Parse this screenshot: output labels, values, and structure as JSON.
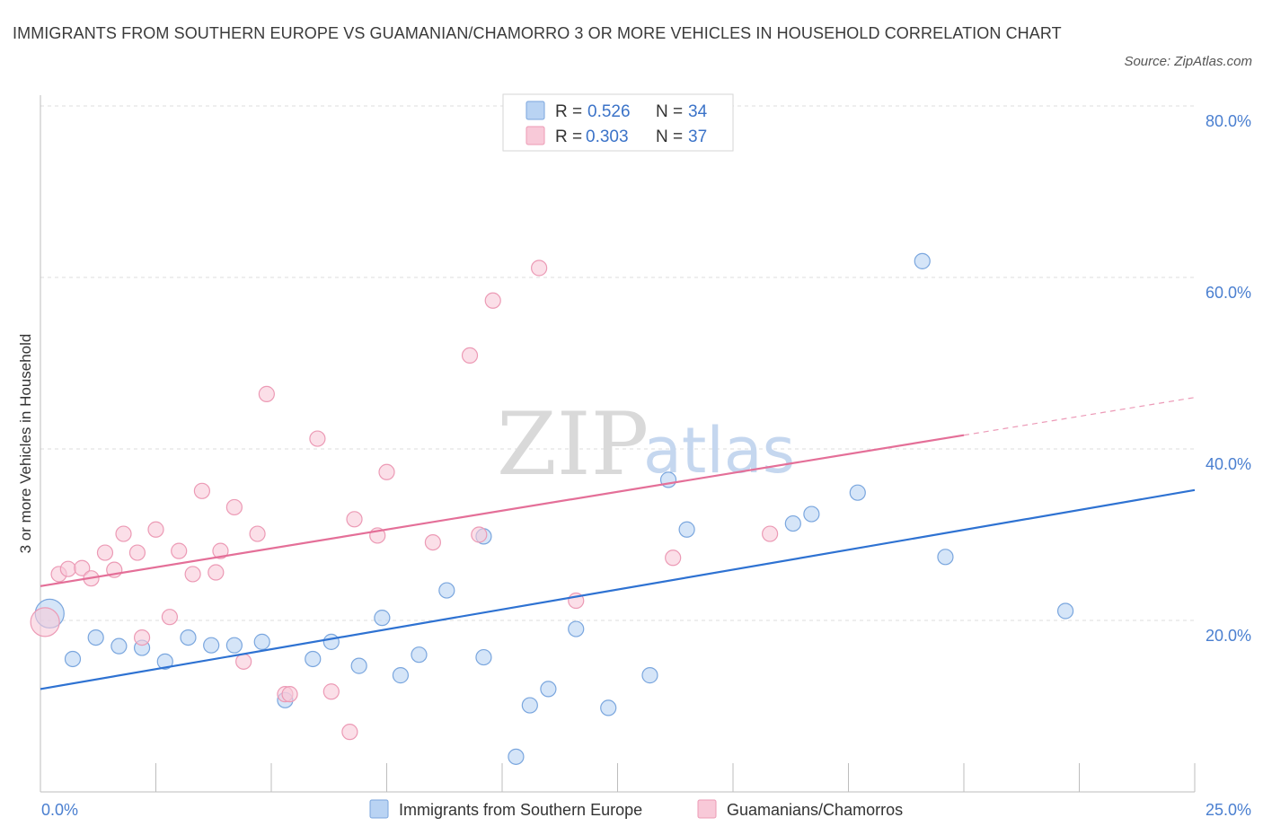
{
  "header": {
    "title": "IMMIGRANTS FROM SOUTHERN EUROPE VS GUAMANIAN/CHAMORRO 3 OR MORE VEHICLES IN HOUSEHOLD CORRELATION CHART",
    "source": "Source: ZipAtlas.com"
  },
  "watermark": {
    "zip": "ZIP",
    "atlas": "atlas"
  },
  "colors": {
    "blue_fill": "#b9d3f3",
    "blue_stroke": "#7aa6de",
    "blue_line": "#2e72d2",
    "pink_fill": "#f8c9d8",
    "pink_stroke": "#ec9ab5",
    "pink_line": "#e46f98",
    "grid": "#dddddd",
    "axis_tick_text": "#4a7fd0"
  },
  "legend": {
    "rows": [
      {
        "r_label": "R =",
        "r_value": "0.526",
        "n_label": "N =",
        "n_value": "34"
      },
      {
        "r_label": "R =",
        "r_value": "0.303",
        "n_label": "N =",
        "n_value": "37"
      }
    ]
  },
  "chart_data": {
    "type": "scatter",
    "xlabel": "",
    "ylabel": "3 or more Vehicles in Household",
    "xlim": [
      0,
      25
    ],
    "ylim": [
      0,
      80
    ],
    "x_tick_labels": [
      "0.0%",
      "25.0%"
    ],
    "y_ticks": [
      20,
      40,
      60,
      80
    ],
    "y_tick_labels": [
      "20.0%",
      "40.0%",
      "60.0%",
      "80.0%"
    ],
    "grid": true,
    "legend_position": "top-center",
    "series": [
      {
        "name": "Immigrants from Southern Europe",
        "color": "#b9d3f3",
        "trend": {
          "x": [
            0,
            25
          ],
          "y": [
            12.0,
            35.2
          ],
          "dashed_from": null
        },
        "points": [
          {
            "x": 0.2,
            "y": 20.8,
            "big": true
          },
          {
            "x": 0.7,
            "y": 15.5
          },
          {
            "x": 1.2,
            "y": 18.0
          },
          {
            "x": 1.7,
            "y": 17.0
          },
          {
            "x": 2.2,
            "y": 16.8
          },
          {
            "x": 2.7,
            "y": 15.2
          },
          {
            "x": 3.2,
            "y": 18.0
          },
          {
            "x": 3.7,
            "y": 17.1
          },
          {
            "x": 4.2,
            "y": 17.1
          },
          {
            "x": 4.8,
            "y": 17.5
          },
          {
            "x": 5.3,
            "y": 10.7
          },
          {
            "x": 5.9,
            "y": 15.5
          },
          {
            "x": 6.3,
            "y": 17.5
          },
          {
            "x": 6.9,
            "y": 14.7
          },
          {
            "x": 7.4,
            "y": 20.3
          },
          {
            "x": 7.8,
            "y": 13.6
          },
          {
            "x": 8.2,
            "y": 16.0
          },
          {
            "x": 8.8,
            "y": 23.5
          },
          {
            "x": 9.6,
            "y": 29.8
          },
          {
            "x": 9.6,
            "y": 15.7
          },
          {
            "x": 10.6,
            "y": 10.1
          },
          {
            "x": 11.0,
            "y": 12.0
          },
          {
            "x": 10.3,
            "y": 4.1
          },
          {
            "x": 11.6,
            "y": 19.0
          },
          {
            "x": 12.3,
            "y": 9.8
          },
          {
            "x": 13.2,
            "y": 13.6
          },
          {
            "x": 13.6,
            "y": 36.4
          },
          {
            "x": 14.0,
            "y": 30.6
          },
          {
            "x": 16.3,
            "y": 31.3
          },
          {
            "x": 16.7,
            "y": 32.4
          },
          {
            "x": 17.7,
            "y": 34.9
          },
          {
            "x": 19.1,
            "y": 61.9
          },
          {
            "x": 19.6,
            "y": 27.4
          },
          {
            "x": 22.2,
            "y": 21.1
          }
        ]
      },
      {
        "name": "Guamanians/Chamorros",
        "color": "#f8c9d8",
        "trend": {
          "x": [
            0,
            25
          ],
          "y": [
            24.0,
            46.0
          ],
          "dashed_from": 20.0
        },
        "points": [
          {
            "x": 0.1,
            "y": 19.8,
            "big": true
          },
          {
            "x": 0.4,
            "y": 25.4
          },
          {
            "x": 0.6,
            "y": 26.0
          },
          {
            "x": 0.9,
            "y": 26.1
          },
          {
            "x": 1.1,
            "y": 24.9
          },
          {
            "x": 1.4,
            "y": 27.9
          },
          {
            "x": 1.6,
            "y": 25.9
          },
          {
            "x": 1.8,
            "y": 30.1
          },
          {
            "x": 2.1,
            "y": 27.9
          },
          {
            "x": 2.5,
            "y": 30.6
          },
          {
            "x": 2.2,
            "y": 18.0
          },
          {
            "x": 2.8,
            "y": 20.4
          },
          {
            "x": 3.0,
            "y": 28.1
          },
          {
            "x": 3.3,
            "y": 25.4
          },
          {
            "x": 3.5,
            "y": 35.1
          },
          {
            "x": 3.8,
            "y": 25.6
          },
          {
            "x": 3.9,
            "y": 28.1
          },
          {
            "x": 4.2,
            "y": 33.2
          },
          {
            "x": 4.4,
            "y": 15.2
          },
          {
            "x": 4.7,
            "y": 30.1
          },
          {
            "x": 4.9,
            "y": 46.4
          },
          {
            "x": 5.3,
            "y": 11.4
          },
          {
            "x": 5.4,
            "y": 11.4
          },
          {
            "x": 6.0,
            "y": 41.2
          },
          {
            "x": 6.3,
            "y": 11.7
          },
          {
            "x": 6.7,
            "y": 7.0
          },
          {
            "x": 6.8,
            "y": 31.8
          },
          {
            "x": 7.3,
            "y": 29.9
          },
          {
            "x": 7.5,
            "y": 37.3
          },
          {
            "x": 8.5,
            "y": 29.1
          },
          {
            "x": 9.3,
            "y": 50.9
          },
          {
            "x": 9.5,
            "y": 30.0
          },
          {
            "x": 9.8,
            "y": 57.3
          },
          {
            "x": 10.8,
            "y": 61.1
          },
          {
            "x": 11.6,
            "y": 22.3
          },
          {
            "x": 13.7,
            "y": 27.3
          },
          {
            "x": 15.8,
            "y": 30.1
          }
        ]
      }
    ]
  }
}
